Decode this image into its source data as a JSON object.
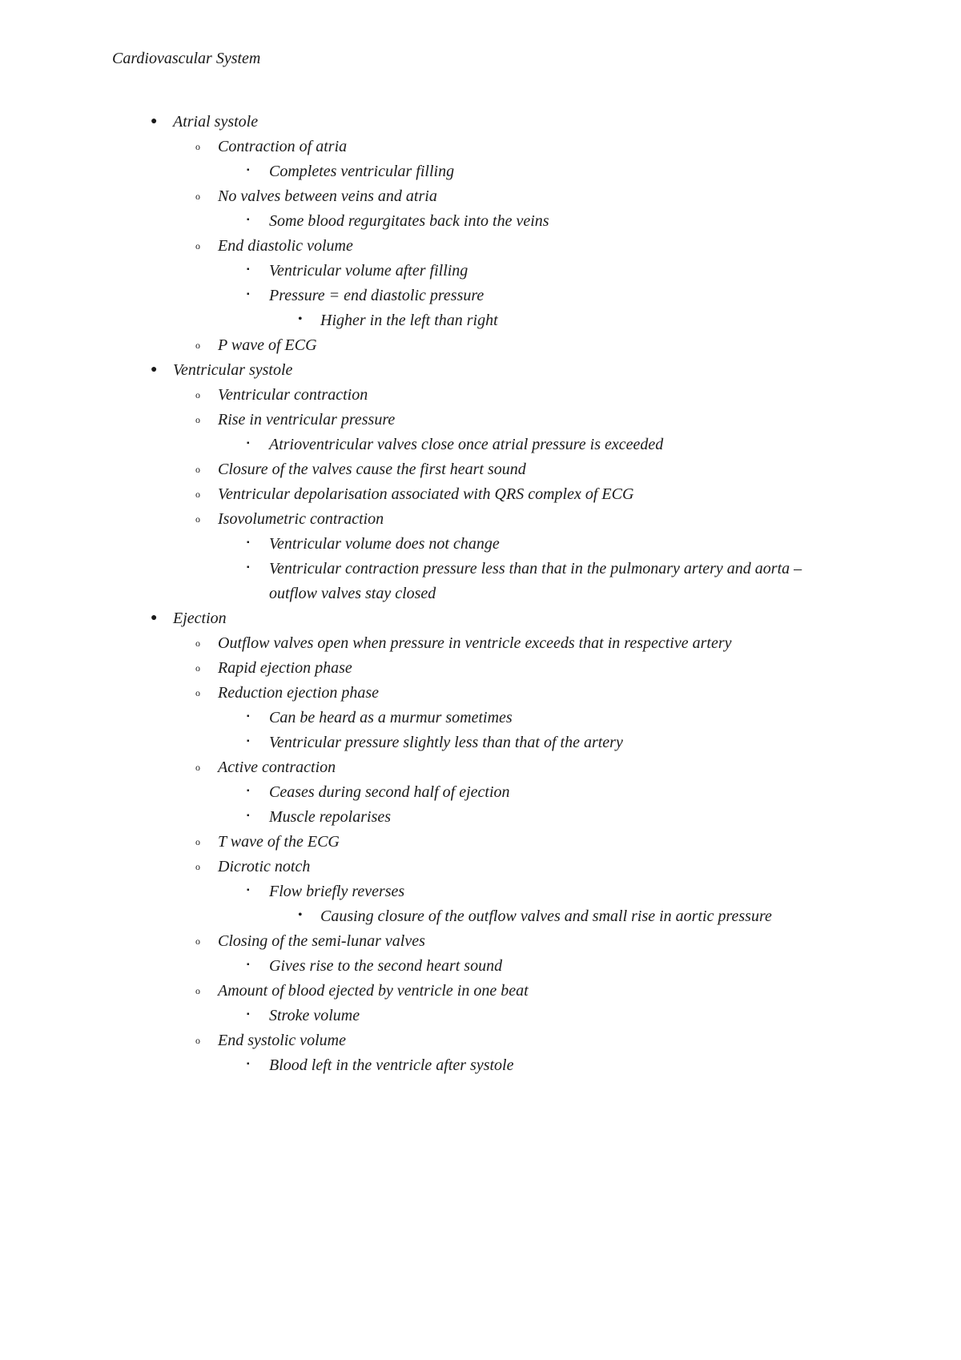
{
  "title": "Cardiovascular System",
  "typography": {
    "font_family": "Georgia, 'Times New Roman', serif",
    "font_style": "italic",
    "font_size_pt": 15,
    "text_color": "#1a1a1a",
    "background_color": "#ffffff",
    "line_height": 1.55
  },
  "bullets": {
    "level1": {
      "glyph": "●",
      "class": "b-disc"
    },
    "level2": {
      "glyph": "o",
      "class": "b-circ"
    },
    "level3": {
      "glyph": "▪",
      "class": "b-sq"
    },
    "level4": {
      "glyph": "•",
      "class": "b-dot"
    }
  },
  "outline": [
    {
      "text": "Atrial systole",
      "children": [
        {
          "text": "Contraction of atria",
          "children": [
            {
              "text": "Completes ventricular filling"
            }
          ]
        },
        {
          "text": "No valves between veins and atria",
          "children": [
            {
              "text": "Some blood regurgitates back into the veins"
            }
          ]
        },
        {
          "text": "End diastolic volume",
          "children": [
            {
              "text": "Ventricular volume after filling"
            },
            {
              "text": "Pressure = end diastolic pressure",
              "children": [
                {
                  "text": "Higher in the left than right"
                }
              ]
            }
          ]
        },
        {
          "text": "P wave of ECG"
        }
      ]
    },
    {
      "text": "Ventricular systole",
      "children": [
        {
          "text": "Ventricular contraction"
        },
        {
          "text": "Rise in ventricular pressure",
          "children": [
            {
              "text": "Atrioventricular valves close once atrial pressure is exceeded"
            }
          ]
        },
        {
          "text": "Closure of the valves cause the first heart sound"
        },
        {
          "text": "Ventricular depolarisation associated with QRS complex of ECG"
        },
        {
          "text": "Isovolumetric contraction",
          "children": [
            {
              "text": "Ventricular volume does not change"
            },
            {
              "text": "Ventricular contraction pressure less than that in the pulmonary artery and aorta – outflow valves stay closed"
            }
          ]
        }
      ]
    },
    {
      "text": "Ejection",
      "children": [
        {
          "text": "Outflow valves open when pressure in ventricle exceeds that in respective artery"
        },
        {
          "text": "Rapid ejection phase"
        },
        {
          "text": "Reduction ejection phase",
          "children": [
            {
              "text": "Can be heard as a murmur sometimes"
            },
            {
              "text": "Ventricular pressure slightly less than that of the artery"
            }
          ]
        },
        {
          "text": "Active contraction",
          "children": [
            {
              "text": "Ceases during second half of ejection"
            },
            {
              "text": "Muscle repolarises"
            }
          ]
        },
        {
          "text": "T wave of the ECG"
        },
        {
          "text": "Dicrotic notch",
          "children": [
            {
              "text": "Flow briefly reverses",
              "children": [
                {
                  "text": "Causing closure of the outflow valves and small rise in aortic pressure"
                }
              ]
            }
          ]
        },
        {
          "text": "Closing of the semi-lunar valves",
          "children": [
            {
              "text": "Gives rise to the second heart sound"
            }
          ]
        },
        {
          "text": "Amount of blood ejected by ventricle in one beat",
          "children": [
            {
              "text": "Stroke volume"
            }
          ]
        },
        {
          "text": "End systolic volume",
          "children": [
            {
              "text": "Blood left in the ventricle after systole"
            }
          ]
        }
      ]
    }
  ]
}
